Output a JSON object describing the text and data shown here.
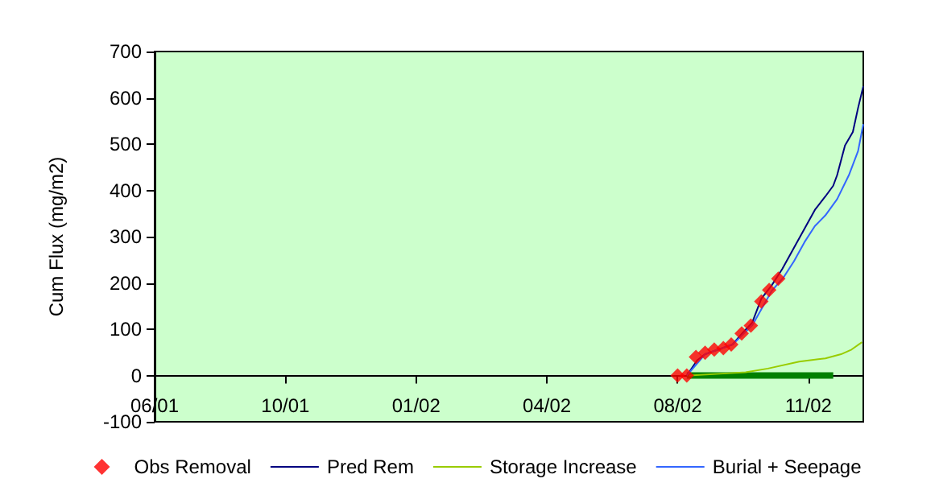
{
  "chart_data": {
    "type": "line",
    "ylabel": "Cum Flux (mg/m2)",
    "xlim": [
      "2001-06-28",
      "2002-12-22"
    ],
    "xticks": [
      {
        "value": "2001-06-28",
        "label": "06/01"
      },
      {
        "value": "2001-10-06",
        "label": "10/01"
      },
      {
        "value": "2002-01-14",
        "label": "01/02"
      },
      {
        "value": "2002-04-24",
        "label": "04/02"
      },
      {
        "value": "2002-08-02",
        "label": "08/02"
      },
      {
        "value": "2002-11-10",
        "label": "11/02"
      }
    ],
    "ylim": [
      -100,
      700
    ],
    "yticks": [
      -100,
      0,
      100,
      200,
      300,
      400,
      500,
      600,
      700
    ],
    "legend": "bottom",
    "series": [
      {
        "name": "Obs Removal",
        "type": "scatter",
        "marker": "diamond",
        "color": "#ff0000",
        "x": [
          "2002-08-02",
          "2002-08-09",
          "2002-08-16",
          "2002-08-23",
          "2002-08-30",
          "2002-09-06",
          "2002-09-12",
          "2002-09-20",
          "2002-09-27",
          "2002-10-05",
          "2002-10-11",
          "2002-10-18"
        ],
        "values": [
          0,
          0,
          40,
          49,
          56,
          59,
          67,
          91,
          108,
          160,
          185,
          209
        ]
      },
      {
        "name": "Pred Rem",
        "marker": "none",
        "color": "#000080",
        "x": [
          "2002-08-09",
          "2002-08-17",
          "2002-08-23",
          "2002-09-13",
          "2002-09-21",
          "2002-09-28",
          "2002-10-05",
          "2002-10-13",
          "2002-10-21",
          "2002-10-30",
          "2002-11-07",
          "2002-11-15",
          "2002-11-23",
          "2002-11-29",
          "2002-12-02",
          "2002-12-08",
          "2002-12-14",
          "2002-12-18",
          "2002-12-22"
        ],
        "values": [
          0,
          33,
          46,
          67,
          93,
          114,
          166,
          195,
          230,
          276,
          317,
          358,
          387,
          410,
          433,
          497,
          526,
          578,
          625
        ]
      },
      {
        "name": "Storage Increase",
        "marker": "none",
        "color": "#99cc00",
        "x": [
          "2002-08-11",
          "2002-09-11",
          "2002-09-23",
          "2002-10-10",
          "2002-11-03",
          "2002-11-23",
          "2002-12-05",
          "2002-12-13",
          "2002-12-21"
        ],
        "values": [
          0,
          5,
          7,
          15,
          30,
          37,
          46,
          56,
          72
        ]
      },
      {
        "name": "Burial + Seepage",
        "marker": "none",
        "color": "#3366ff",
        "x": [
          "2002-08-09",
          "2002-08-23",
          "2002-09-13",
          "2002-09-28",
          "2002-10-13",
          "2002-10-22",
          "2002-10-30",
          "2002-11-07",
          "2002-11-15",
          "2002-11-23",
          "2002-12-02",
          "2002-12-11",
          "2002-12-18",
          "2002-12-22"
        ],
        "values": [
          0,
          46,
          67,
          108,
          183,
          212,
          247,
          288,
          323,
          346,
          381,
          433,
          485,
          543
        ]
      },
      {
        "marker": "none",
        "color": "#008000",
        "x": [
          "2002-08-09",
          "2002-11-29"
        ],
        "values": [
          0,
          0
        ]
      }
    ]
  }
}
